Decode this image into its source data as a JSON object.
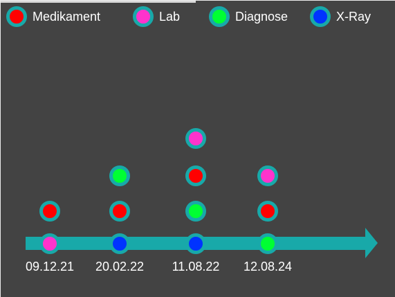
{
  "legend": [
    {
      "label": "Medikament",
      "color": "#ff0000"
    },
    {
      "label": "Lab",
      "color": "#ff33cc"
    },
    {
      "label": "Diagnose",
      "color": "#00ff33"
    },
    {
      "label": "X-Ray",
      "color": "#0033ff"
    }
  ],
  "timeline": {
    "line_color": "#18a9a9",
    "marker_ring_color": "#18a9a9",
    "dates": [
      "09.12.21",
      "20.02.22",
      "11.08.22",
      "12.08.24"
    ]
  },
  "events": [
    {
      "date": "09.12.21",
      "items": [
        "Lab",
        "Medikament"
      ]
    },
    {
      "date": "20.02.22",
      "items": [
        "X-Ray",
        "Medikament",
        "Diagnose"
      ]
    },
    {
      "date": "11.08.22",
      "items": [
        "X-Ray",
        "Diagnose",
        "Medikament",
        "Lab"
      ]
    },
    {
      "date": "12.08.24",
      "items": [
        "Diagnose",
        "Medikament",
        "Lab"
      ]
    }
  ]
}
